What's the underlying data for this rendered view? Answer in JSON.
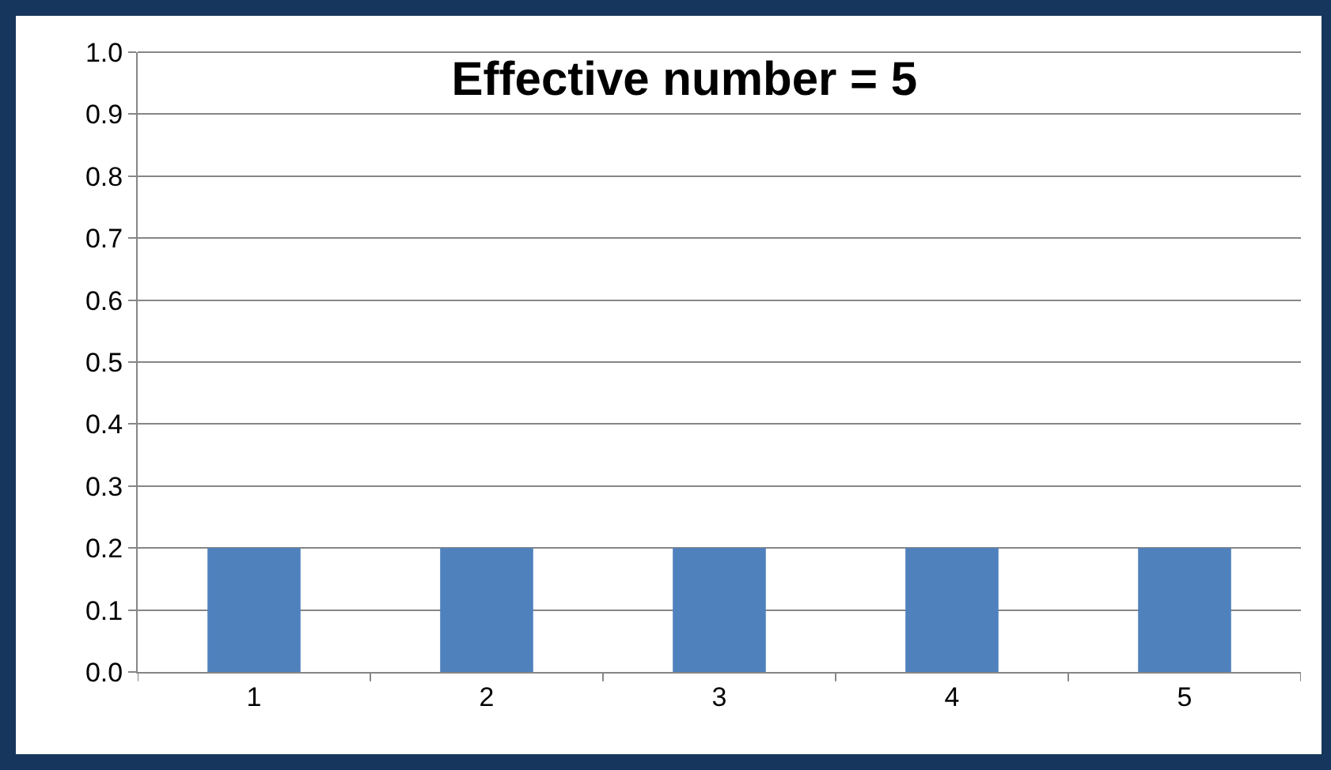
{
  "chart_data": {
    "type": "bar",
    "title": "Effective number = 5",
    "categories": [
      "1",
      "2",
      "3",
      "4",
      "5"
    ],
    "values": [
      0.2,
      0.2,
      0.2,
      0.2,
      0.2
    ],
    "color": "#4f81bd",
    "ylim": [
      0,
      1
    ],
    "yticks": [
      {
        "value": 0,
        "label": "0.0"
      },
      {
        "value": 0.1,
        "label": "0.1"
      },
      {
        "value": 0.2,
        "label": "0.2"
      },
      {
        "value": 0.3,
        "label": "0.3"
      },
      {
        "value": 0.4,
        "label": "0.4"
      },
      {
        "value": 0.5,
        "label": "0.5"
      },
      {
        "value": 0.6,
        "label": "0.6"
      },
      {
        "value": 0.7,
        "label": "0.7"
      },
      {
        "value": 0.8,
        "label": "0.8"
      },
      {
        "value": 0.9,
        "label": "0.9"
      },
      {
        "value": 1,
        "label": "1.0"
      }
    ],
    "grid": "y"
  }
}
